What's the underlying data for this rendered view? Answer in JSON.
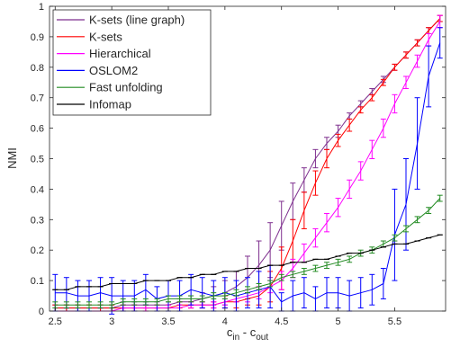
{
  "chart_data": {
    "type": "line",
    "xlabel": "c",
    "xlabel_sub_in": "in",
    "xlabel_mid": " - c",
    "xlabel_sub_out": "out",
    "ylabel": "NMI",
    "xlim": [
      2.45,
      5.95
    ],
    "ylim": [
      0,
      1
    ],
    "xticks": [
      2.5,
      3,
      3.5,
      4,
      4.5,
      5,
      5.5
    ],
    "xtick_labels": [
      "2.5",
      "3",
      "3.5",
      "4",
      "4.5",
      "5",
      "5.5"
    ],
    "yticks": [
      0,
      0.1,
      0.2,
      0.3,
      0.4,
      0.5,
      0.6,
      0.7,
      0.8,
      0.9,
      1
    ],
    "ytick_labels": [
      "0",
      "0.1",
      "0.2",
      "0.3",
      "0.4",
      "0.5",
      "0.6",
      "0.7",
      "0.8",
      "0.9",
      "1"
    ],
    "grid": false,
    "legend_position": "top-left",
    "x": [
      2.5,
      2.6,
      2.7,
      2.8,
      2.9,
      3.0,
      3.1,
      3.2,
      3.3,
      3.4,
      3.5,
      3.6,
      3.7,
      3.8,
      3.9,
      4.0,
      4.1,
      4.2,
      4.3,
      4.4,
      4.5,
      4.6,
      4.7,
      4.8,
      4.9,
      5.0,
      5.1,
      5.2,
      5.3,
      5.4,
      5.5,
      5.6,
      5.7,
      5.8,
      5.9
    ],
    "series": [
      {
        "name": "K-sets (line graph)",
        "color": "#7e2f8e",
        "values": [
          0.01,
          0.01,
          0.01,
          0.01,
          0.01,
          0.01,
          0.02,
          0.02,
          0.02,
          0.02,
          0.02,
          0.03,
          0.03,
          0.04,
          0.05,
          0.06,
          0.08,
          0.11,
          0.15,
          0.2,
          0.28,
          0.36,
          0.43,
          0.5,
          0.55,
          0.59,
          0.64,
          0.68,
          0.72,
          0.76,
          0.8,
          0.84,
          0.88,
          0.92,
          0.96
        ],
        "errors": [
          0.01,
          0.01,
          0.01,
          0.01,
          0.01,
          0.01,
          0.01,
          0.01,
          0.01,
          0.01,
          0.01,
          0.01,
          0.02,
          0.02,
          0.03,
          0.04,
          0.05,
          0.07,
          0.08,
          0.09,
          0.08,
          0.06,
          0.04,
          0.03,
          0.02,
          0.02,
          0.01,
          0.01,
          0.01,
          0.01,
          0.01,
          0.01,
          0.01,
          0.01,
          0.01
        ]
      },
      {
        "name": "K-sets",
        "color": "#ff0000",
        "values": [
          0.01,
          0.01,
          0.01,
          0.01,
          0.01,
          0.01,
          0.01,
          0.01,
          0.01,
          0.01,
          0.01,
          0.02,
          0.02,
          0.02,
          0.02,
          0.03,
          0.03,
          0.04,
          0.05,
          0.08,
          0.14,
          0.23,
          0.33,
          0.42,
          0.5,
          0.56,
          0.61,
          0.66,
          0.7,
          0.75,
          0.8,
          0.84,
          0.88,
          0.92,
          0.96
        ],
        "errors": [
          0.01,
          0.01,
          0.01,
          0.01,
          0.01,
          0.01,
          0.01,
          0.01,
          0.01,
          0.01,
          0.01,
          0.01,
          0.01,
          0.01,
          0.01,
          0.02,
          0.02,
          0.02,
          0.03,
          0.05,
          0.07,
          0.07,
          0.06,
          0.04,
          0.03,
          0.02,
          0.02,
          0.01,
          0.01,
          0.01,
          0.01,
          0.01,
          0.01,
          0.01,
          0.01
        ]
      },
      {
        "name": "Hierarchical",
        "color": "#ff00ff",
        "values": [
          0.0,
          0.0,
          0.0,
          0.0,
          0.0,
          0.0,
          0.01,
          0.01,
          0.01,
          0.01,
          0.01,
          0.01,
          0.02,
          0.02,
          0.02,
          0.03,
          0.04,
          0.05,
          0.06,
          0.08,
          0.1,
          0.14,
          0.19,
          0.24,
          0.29,
          0.34,
          0.4,
          0.46,
          0.53,
          0.6,
          0.68,
          0.75,
          0.82,
          0.89,
          0.95
        ],
        "errors": [
          0.0,
          0.0,
          0.0,
          0.0,
          0.0,
          0.0,
          0.01,
          0.01,
          0.01,
          0.01,
          0.01,
          0.01,
          0.01,
          0.01,
          0.01,
          0.01,
          0.01,
          0.02,
          0.02,
          0.02,
          0.03,
          0.03,
          0.03,
          0.03,
          0.03,
          0.03,
          0.03,
          0.03,
          0.03,
          0.03,
          0.03,
          0.02,
          0.02,
          0.02,
          0.02
        ]
      },
      {
        "name": "OSLOM2",
        "color": "#0000ff",
        "values": [
          0.06,
          0.06,
          0.05,
          0.05,
          0.06,
          0.05,
          0.05,
          0.05,
          0.07,
          0.04,
          0.05,
          0.05,
          0.07,
          0.06,
          0.05,
          0.06,
          0.05,
          0.06,
          0.07,
          0.08,
          0.03,
          0.05,
          0.06,
          0.04,
          0.06,
          0.06,
          0.05,
          0.06,
          0.07,
          0.09,
          0.25,
          0.35,
          0.55,
          0.77,
          0.88
        ],
        "errors": [
          0.06,
          0.05,
          0.05,
          0.05,
          0.05,
          0.06,
          0.05,
          0.05,
          0.05,
          0.04,
          0.05,
          0.05,
          0.05,
          0.05,
          0.05,
          0.05,
          0.05,
          0.05,
          0.06,
          0.07,
          0.03,
          0.05,
          0.05,
          0.04,
          0.05,
          0.05,
          0.05,
          0.05,
          0.05,
          0.05,
          0.15,
          0.15,
          0.15,
          0.1,
          0.05
        ]
      },
      {
        "name": "Fast unfolding",
        "color": "#228b22",
        "values": [
          0.02,
          0.02,
          0.02,
          0.02,
          0.02,
          0.02,
          0.03,
          0.03,
          0.03,
          0.03,
          0.04,
          0.04,
          0.04,
          0.04,
          0.05,
          0.05,
          0.06,
          0.07,
          0.08,
          0.09,
          0.11,
          0.12,
          0.13,
          0.14,
          0.15,
          0.16,
          0.17,
          0.19,
          0.2,
          0.22,
          0.24,
          0.27,
          0.3,
          0.33,
          0.37
        ],
        "errors": [
          0.01,
          0.01,
          0.01,
          0.01,
          0.01,
          0.01,
          0.01,
          0.01,
          0.01,
          0.01,
          0.01,
          0.01,
          0.01,
          0.01,
          0.01,
          0.01,
          0.01,
          0.01,
          0.01,
          0.01,
          0.01,
          0.01,
          0.01,
          0.01,
          0.01,
          0.01,
          0.01,
          0.01,
          0.01,
          0.01,
          0.01,
          0.01,
          0.01,
          0.01,
          0.01
        ]
      },
      {
        "name": "Infomap",
        "color": "#000000",
        "values": [
          0.07,
          0.07,
          0.08,
          0.08,
          0.08,
          0.09,
          0.09,
          0.09,
          0.1,
          0.1,
          0.1,
          0.11,
          0.11,
          0.12,
          0.12,
          0.13,
          0.13,
          0.14,
          0.14,
          0.15,
          0.15,
          0.16,
          0.16,
          0.17,
          0.17,
          0.18,
          0.19,
          0.19,
          0.2,
          0.21,
          0.22,
          0.22,
          0.23,
          0.24,
          0.25
        ],
        "errors": [
          0.0,
          0.0,
          0.0,
          0.0,
          0.0,
          0.0,
          0.0,
          0.0,
          0.0,
          0.0,
          0.0,
          0.0,
          0.0,
          0.0,
          0.0,
          0.0,
          0.0,
          0.0,
          0.0,
          0.0,
          0.0,
          0.0,
          0.0,
          0.0,
          0.0,
          0.0,
          0.0,
          0.0,
          0.0,
          0.0,
          0.0,
          0.0,
          0.0,
          0.0,
          0.0
        ]
      }
    ]
  }
}
